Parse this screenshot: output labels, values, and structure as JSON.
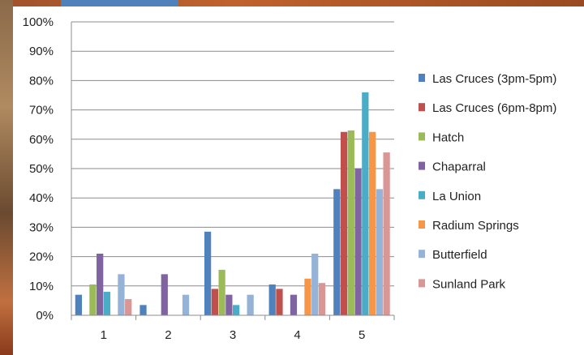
{
  "chart_data": {
    "type": "bar",
    "categories": [
      "1",
      "2",
      "3",
      "4",
      "5"
    ],
    "ylim": [
      0,
      100
    ],
    "yticks": [
      "0%",
      "10%",
      "20%",
      "30%",
      "40%",
      "50%",
      "60%",
      "70%",
      "80%",
      "90%",
      "100%"
    ],
    "title": "",
    "xlabel": "",
    "ylabel": "",
    "grid": "horizontal",
    "legend_position": "right",
    "series": [
      {
        "name": "Las Cruces (3pm-5pm)",
        "color": "#4f81bd",
        "values": [
          7,
          3.5,
          28.5,
          10.5,
          43
        ]
      },
      {
        "name": "Las Cruces (6pm-8pm)",
        "color": "#c0504d",
        "values": [
          0,
          0,
          9,
          9,
          62.5
        ]
      },
      {
        "name": "Hatch",
        "color": "#9bbb59",
        "values": [
          10.5,
          0,
          15.5,
          0,
          63
        ]
      },
      {
        "name": "Chaparral",
        "color": "#8064a2",
        "values": [
          21,
          14,
          7,
          7,
          50
        ]
      },
      {
        "name": "La Union",
        "color": "#4bacc6",
        "values": [
          8,
          0,
          3.5,
          0,
          76
        ]
      },
      {
        "name": "Radium Springs",
        "color": "#f79646",
        "values": [
          0,
          0,
          0,
          12.5,
          62.5
        ]
      },
      {
        "name": "Butterfield",
        "color": "#95b3d7",
        "values": [
          14,
          7,
          7,
          21,
          43
        ]
      },
      {
        "name": "Sunland Park",
        "color": "#d99694",
        "values": [
          5.5,
          0,
          0,
          11,
          55.5
        ]
      }
    ]
  }
}
